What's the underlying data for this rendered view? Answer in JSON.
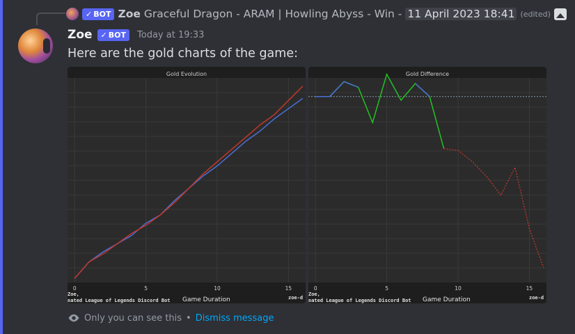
{
  "reply": {
    "author": "Zoe",
    "bot_label": "BOT",
    "text": "Graceful Dragon - ARAM | Howling Abyss - Win -",
    "date": "11 April 2023 18:41",
    "edited": "(edited)"
  },
  "message": {
    "author": "Zoe",
    "bot_label": "BOT",
    "timestamp": "Today at 19:33",
    "content": "Here are the gold charts of the game:"
  },
  "colors": {
    "accent": "#5865f2",
    "link": "#00a8fc",
    "blue_line": "#4a6fd6",
    "red_line": "#c0392b",
    "green_line": "#22c322"
  },
  "chart_data": [
    {
      "type": "line",
      "title": "Gold Evolution",
      "xlabel": "Game Duration",
      "ylabel": "",
      "x_ticks": [
        "0",
        "5",
        "10",
        "15"
      ],
      "xlim": [
        -0.5,
        16.2
      ],
      "ylim": [
        0,
        100
      ],
      "series": [
        {
          "name": "",
          "color": "#4a6fd6",
          "x": [
            0,
            1,
            2,
            3,
            4,
            5,
            6,
            7,
            8,
            9,
            10,
            11,
            12,
            13,
            14,
            15,
            16
          ],
          "y": [
            2,
            10,
            15,
            19,
            23,
            29,
            33,
            40,
            46,
            52,
            57,
            63,
            69,
            74,
            80,
            85,
            90
          ]
        },
        {
          "name": "",
          "color": "#c0392b",
          "x": [
            0,
            1,
            2,
            3,
            4,
            5,
            6,
            7,
            8,
            9,
            10,
            11,
            12,
            13,
            14,
            15,
            16
          ],
          "y": [
            2,
            10,
            14,
            19,
            24,
            28,
            33,
            39,
            46,
            53,
            59,
            65,
            71,
            77,
            82,
            89,
            96
          ]
        }
      ],
      "watermark_left_1": "Zoe,",
      "watermark_left_2": "nated League of Legends Discord Bot",
      "watermark_right": "zoe-d"
    },
    {
      "type": "line",
      "title": "Gold Difference",
      "xlabel": "Game Duration",
      "ylabel": "",
      "x_ticks": [
        "0",
        "5",
        "10",
        "15"
      ],
      "xlim": [
        -0.5,
        16.2
      ],
      "ylim": [
        -100,
        10
      ],
      "zero_line": true,
      "series": [
        {
          "name": "",
          "color": "#22c322",
          "style": "solid",
          "x": [
            0,
            1,
            2,
            3,
            4,
            5,
            6,
            7,
            8,
            9
          ],
          "y": [
            0,
            0,
            8,
            5,
            -14,
            12,
            -2,
            7,
            0,
            -28
          ]
        },
        {
          "name": "",
          "color": "#c0392b",
          "style": "dotted",
          "x": [
            9,
            10,
            11,
            12,
            13,
            14,
            15,
            16
          ],
          "y": [
            -28,
            -29,
            -35,
            -43,
            -53,
            -38,
            -71,
            -92
          ]
        }
      ],
      "blue_segments_above_zero": true,
      "watermark_left_1": "Zoe,",
      "watermark_left_2": "nated League of Legends Discord Bot",
      "watermark_right": "zoe-d"
    }
  ],
  "footer": {
    "ephemeral_text": "Only you can see this",
    "separator": "•",
    "dismiss_label": "Dismiss message"
  }
}
